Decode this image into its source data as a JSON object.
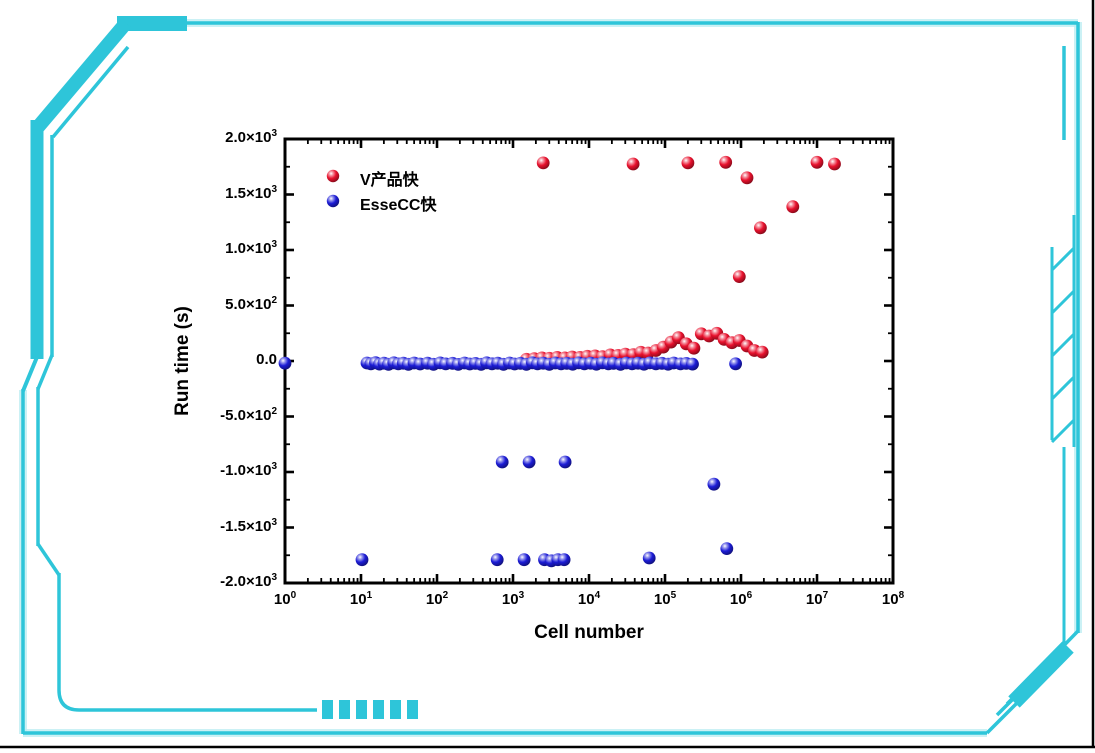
{
  "frame": {
    "color": "#2ec5d9",
    "halo": "#b9ecf2",
    "border_color": "#000000"
  },
  "chart_data": {
    "type": "scatter",
    "title": "",
    "xlabel": "Cell number",
    "ylabel": "Run time (s)",
    "x_scale": "log",
    "x_range": [
      1,
      100000000
    ],
    "y_range": [
      -2000,
      2000
    ],
    "grid": false,
    "legend_position": "top-left-inside",
    "legend": [
      {
        "label": "V产品快",
        "color": "#e8112d"
      },
      {
        "label": "EsseCC快",
        "color": "#1c1cd6"
      }
    ],
    "x_ticks": [
      {
        "value": 1,
        "base": "10",
        "sup": "0"
      },
      {
        "value": 10,
        "base": "10",
        "sup": "1"
      },
      {
        "value": 100,
        "base": "10",
        "sup": "2"
      },
      {
        "value": 1000,
        "base": "10",
        "sup": "3"
      },
      {
        "value": 10000,
        "base": "10",
        "sup": "4"
      },
      {
        "value": 100000,
        "base": "10",
        "sup": "5"
      },
      {
        "value": 1000000,
        "base": "10",
        "sup": "6"
      },
      {
        "value": 10000000,
        "base": "10",
        "sup": "7"
      },
      {
        "value": 100000000,
        "base": "10",
        "sup": "8"
      }
    ],
    "y_ticks": [
      {
        "value": 2000,
        "base": "2.0×10",
        "sup": "3"
      },
      {
        "value": 1500,
        "base": "1.5×10",
        "sup": "3"
      },
      {
        "value": 1000,
        "base": "1.0×10",
        "sup": "3"
      },
      {
        "value": 500,
        "base": "5.0×10",
        "sup": "2"
      },
      {
        "value": 0,
        "base": "0.0",
        "sup": ""
      },
      {
        "value": -500,
        "base": "-5.0×10",
        "sup": "2"
      },
      {
        "value": -1000,
        "base": "-1.0×10",
        "sup": "3"
      },
      {
        "value": -1500,
        "base": "-1.5×10",
        "sup": "3"
      },
      {
        "value": -2000,
        "base": "-2.0×10",
        "sup": "3"
      }
    ],
    "series": [
      {
        "name": "V产品快",
        "color": "#e8112d",
        "points": [
          [
            2500,
            1785
          ],
          [
            38000,
            1775
          ],
          [
            200000,
            1785
          ],
          [
            630000,
            1790
          ],
          [
            1200000,
            1650
          ],
          [
            10000000,
            1790
          ],
          [
            17000000,
            1775
          ],
          [
            4800000,
            1390
          ],
          [
            1800000,
            1200
          ],
          [
            950000,
            760
          ],
          [
            1500,
            15
          ],
          [
            1900,
            22
          ],
          [
            2400,
            28
          ],
          [
            3000,
            24
          ],
          [
            3800,
            32
          ],
          [
            4800,
            28
          ],
          [
            6000,
            36
          ],
          [
            7600,
            32
          ],
          [
            9500,
            42
          ],
          [
            12000,
            46
          ],
          [
            15000,
            40
          ],
          [
            19000,
            55
          ],
          [
            24000,
            50
          ],
          [
            30000,
            62
          ],
          [
            38000,
            58
          ],
          [
            48000,
            78
          ],
          [
            60000,
            72
          ],
          [
            76000,
            95
          ],
          [
            95000,
            125
          ],
          [
            120000,
            170
          ],
          [
            150000,
            210
          ],
          [
            190000,
            155
          ],
          [
            240000,
            115
          ],
          [
            300000,
            245
          ],
          [
            380000,
            225
          ],
          [
            480000,
            250
          ],
          [
            600000,
            195
          ],
          [
            760000,
            165
          ],
          [
            950000,
            185
          ],
          [
            1200000,
            135
          ],
          [
            1500000,
            95
          ],
          [
            1900000,
            80
          ]
        ]
      },
      {
        "name": "EsseCC快",
        "color": "#1c1cd6",
        "points": [
          [
            1,
            -20
          ],
          [
            12,
            -18
          ],
          [
            13.5,
            -25
          ],
          [
            15.5,
            -15
          ],
          [
            17.5,
            -28
          ],
          [
            20,
            -20
          ],
          [
            23,
            -30
          ],
          [
            27,
            -16
          ],
          [
            31,
            -26
          ],
          [
            36,
            -20
          ],
          [
            42,
            -30
          ],
          [
            50,
            -18
          ],
          [
            60,
            -27
          ],
          [
            75,
            -20
          ],
          [
            90,
            -30
          ],
          [
            110,
            -17
          ],
          [
            130,
            -26
          ],
          [
            160,
            -21
          ],
          [
            190,
            -31
          ],
          [
            230,
            -18
          ],
          [
            270,
            -27
          ],
          [
            320,
            -22
          ],
          [
            380,
            -30
          ],
          [
            450,
            -16
          ],
          [
            530,
            -25
          ],
          [
            630,
            -20
          ],
          [
            750,
            -30
          ],
          [
            900,
            -18
          ],
          [
            1050,
            -27
          ],
          [
            1250,
            -21
          ],
          [
            1500,
            -30
          ],
          [
            1800,
            -16
          ],
          [
            2100,
            -26
          ],
          [
            2500,
            -20
          ],
          [
            3000,
            -30
          ],
          [
            3600,
            -18
          ],
          [
            4300,
            -26
          ],
          [
            5100,
            -21
          ],
          [
            6100,
            -29
          ],
          [
            7300,
            -17
          ],
          [
            8700,
            -26
          ],
          [
            10500,
            -20
          ],
          [
            12500,
            -29
          ],
          [
            15000,
            -17
          ],
          [
            18000,
            -26
          ],
          [
            21000,
            -21
          ],
          [
            26000,
            -30
          ],
          [
            31000,
            -18
          ],
          [
            37000,
            -26
          ],
          [
            44000,
            -20
          ],
          [
            53000,
            -29
          ],
          [
            63000,
            -17
          ],
          [
            76000,
            -25
          ],
          [
            91000,
            -21
          ],
          [
            110000,
            -29
          ],
          [
            130000,
            -18
          ],
          [
            160000,
            -26
          ],
          [
            190000,
            -22
          ],
          [
            230000,
            -28
          ],
          [
            850000,
            -25
          ],
          [
            10.3,
            -1790
          ],
          [
            620,
            -1790
          ],
          [
            1400,
            -1790
          ],
          [
            2600,
            -1790
          ],
          [
            3200,
            -1800
          ],
          [
            3900,
            -1790
          ],
          [
            4700,
            -1790
          ],
          [
            62000,
            -1775
          ],
          [
            650000,
            -1690
          ],
          [
            720,
            -910
          ],
          [
            1630,
            -910
          ],
          [
            4850,
            -910
          ],
          [
            440000,
            -1110
          ]
        ]
      }
    ]
  }
}
